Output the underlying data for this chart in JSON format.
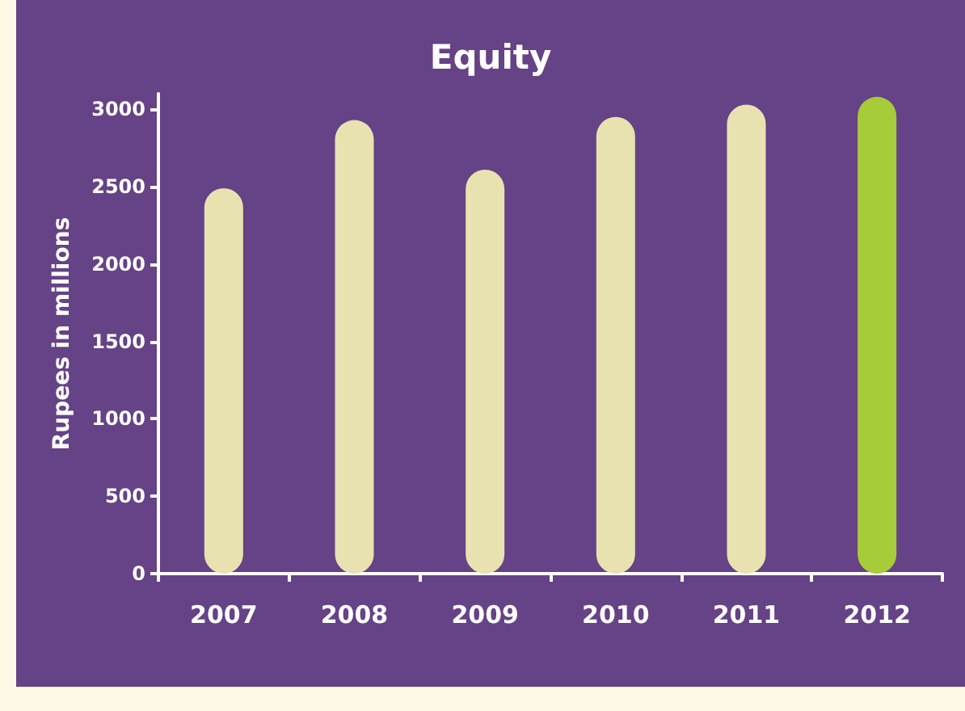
{
  "chart_data": {
    "type": "bar",
    "title": "Equity",
    "ylabel": "Rupees in millions",
    "categories": [
      "2007",
      "2008",
      "2009",
      "2010",
      "2011",
      "2012"
    ],
    "values": [
      2490,
      2930,
      2610,
      2950,
      3030,
      3080
    ],
    "colors": [
      "#e8e2b0",
      "#e8e2b0",
      "#e8e2b0",
      "#e8e2b0",
      "#e8e2b0",
      "#a6cc3a"
    ],
    "ylim": [
      0,
      3100
    ],
    "yticks": [
      0,
      500,
      1000,
      1500,
      2000,
      2500,
      3000
    ],
    "grid": false
  }
}
